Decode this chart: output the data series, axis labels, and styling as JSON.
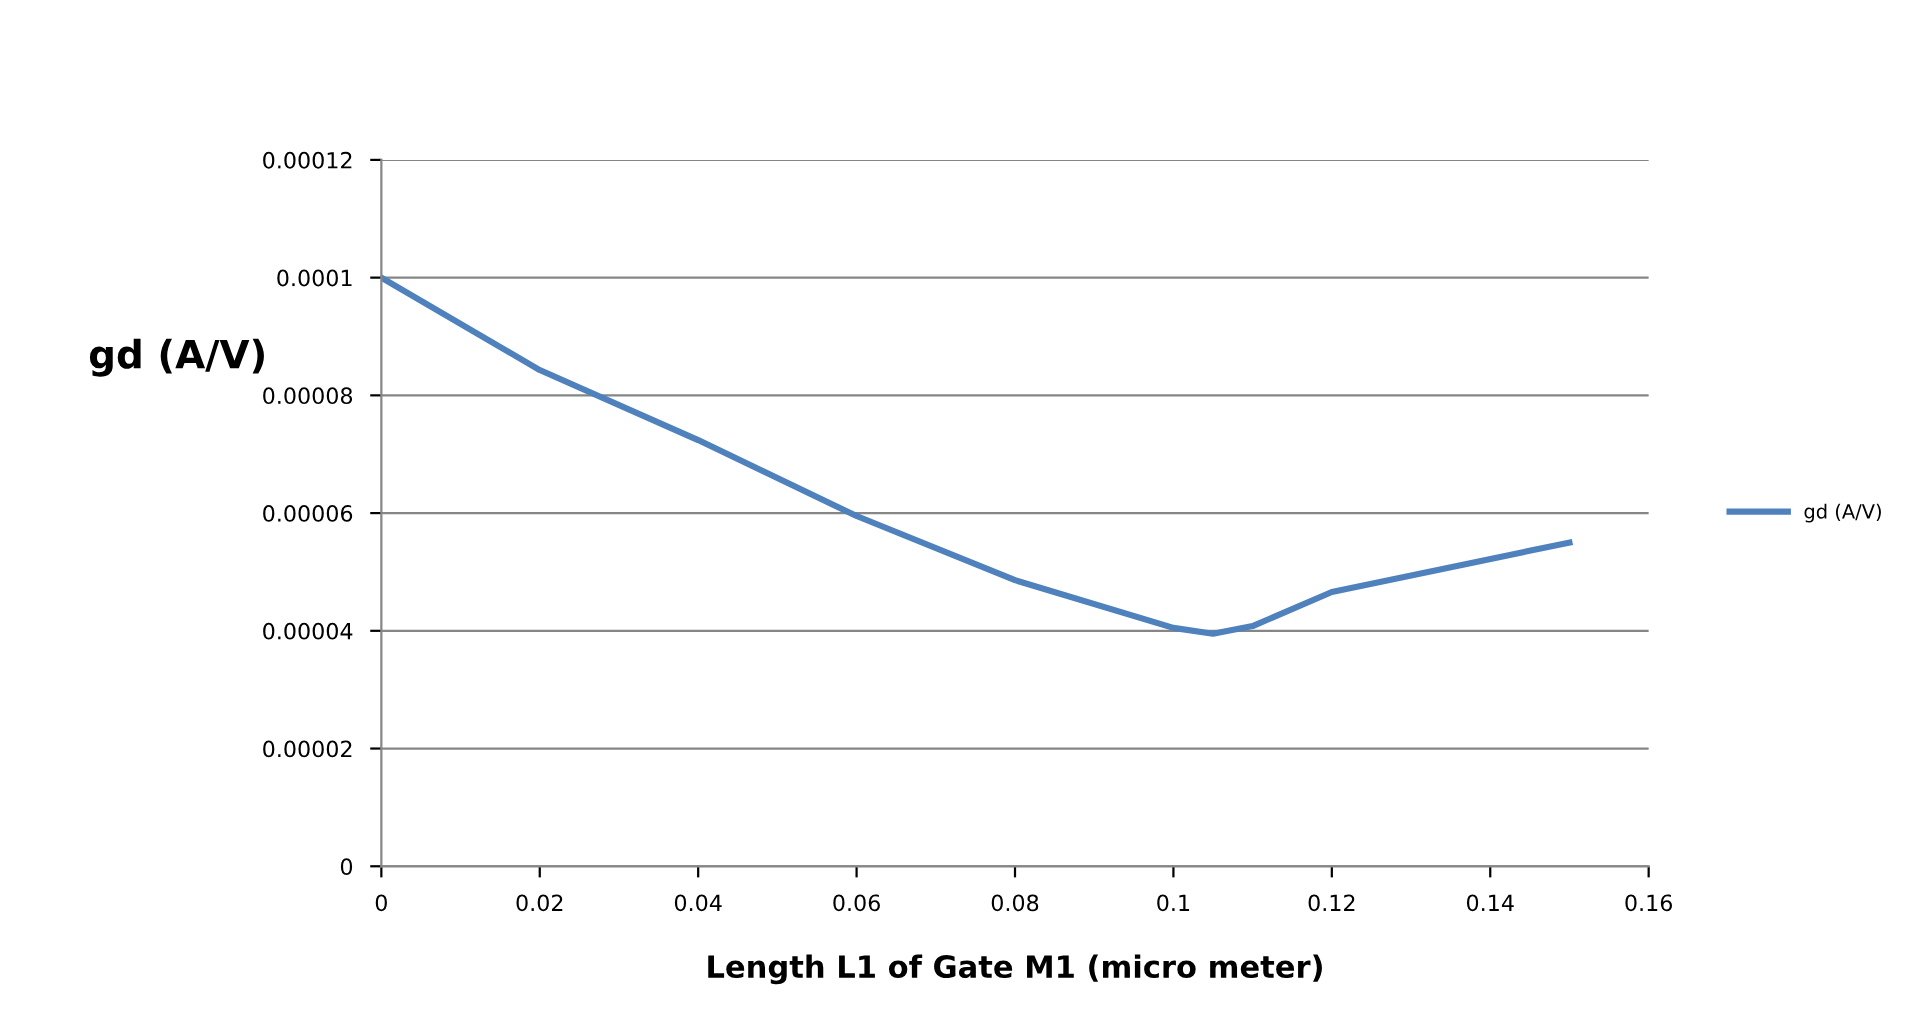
{
  "chart_data": {
    "type": "line",
    "xlabel": "Length L1 of Gate M1 (micro meter)",
    "ylabel": "gd (A/V)",
    "x": [
      0,
      0.02,
      0.04,
      0.06,
      0.08,
      0.1,
      0.105,
      0.11,
      0.12,
      0.15
    ],
    "series": [
      {
        "name": "gd (A/V)",
        "color": "#4f81bd",
        "values": [
          0.0001,
          8.43e-05,
          7.24e-05,
          5.95e-05,
          4.86e-05,
          4.05e-05,
          3.95e-05,
          4.08e-05,
          4.66e-05,
          5.5e-05
        ]
      }
    ],
    "xlim": [
      0,
      0.16
    ],
    "xticks": [
      0,
      0.02,
      0.04,
      0.06,
      0.08,
      0.1,
      0.12,
      0.14,
      0.16
    ],
    "ylim": [
      0,
      0.00012
    ],
    "yticks": [
      {
        "value": 0,
        "label": "0"
      },
      {
        "value": 2e-05,
        "label": "0.00002"
      },
      {
        "value": 4e-05,
        "label": "0.00004"
      },
      {
        "value": 6e-05,
        "label": "0.00006"
      },
      {
        "value": 8e-05,
        "label": "0.00008"
      },
      {
        "value": 0.0001,
        "label": "0.0001"
      },
      {
        "value": 0.00012,
        "label": "0.00012"
      }
    ],
    "grid": "y",
    "legend": "right",
    "marker": "none",
    "line_style": "solid"
  }
}
